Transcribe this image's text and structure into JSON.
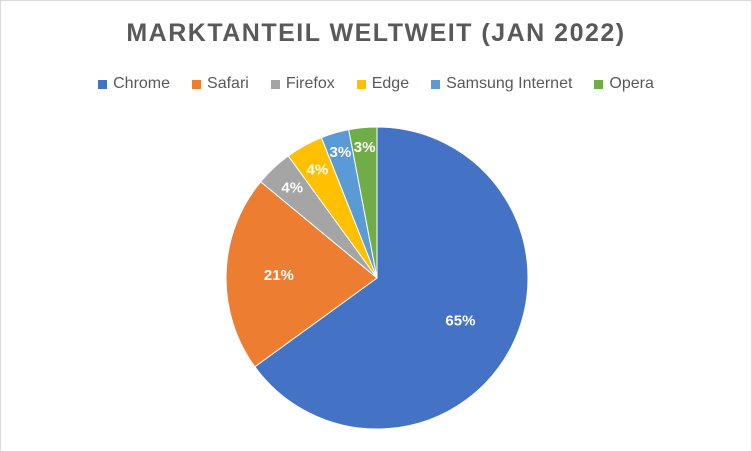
{
  "chart_data": {
    "type": "pie",
    "title": "MARKTANTEIL WELTWEIT (JAN 2022)",
    "legend_position": "top",
    "categories": [
      "Chrome",
      "Safari",
      "Firefox",
      "Edge",
      "Samsung Internet",
      "Opera"
    ],
    "values": [
      65,
      21,
      4,
      4,
      3,
      3
    ],
    "labels": [
      "65%",
      "21%",
      "4%",
      "4%",
      "3%",
      "3%"
    ],
    "colors": [
      "#4472c4",
      "#ed7d31",
      "#a5a5a5",
      "#ffc000",
      "#5b9bd5",
      "#70ad47"
    ]
  }
}
